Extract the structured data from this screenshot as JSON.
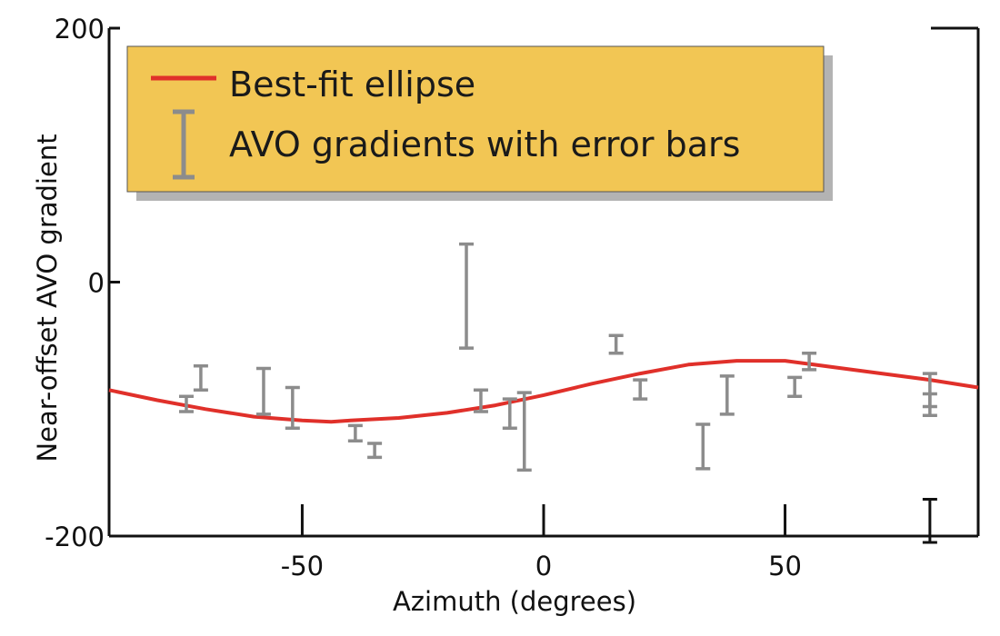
{
  "chart_data": {
    "type": "scatter",
    "xlabel": "Azimuth (degrees)",
    "ylabel": "Near-offset AVO gradient",
    "xlim": [
      -90,
      90
    ],
    "ylim": [
      -200,
      200
    ],
    "x_ticks": [
      -50,
      0,
      50
    ],
    "y_ticks": [
      200,
      0,
      -200
    ],
    "grid": false,
    "legend": {
      "placement": "top-left",
      "background_color": "#f2c654",
      "entries": [
        {
          "label": "Best-fit ellipse",
          "symbol": "line",
          "color": "#e0302a"
        },
        {
          "label": "AVO gradients with error bars",
          "symbol": "error-bar",
          "color": "#8c8c8c"
        }
      ]
    },
    "series": [
      {
        "name": "Best-fit ellipse",
        "kind": "line",
        "color": "#e0302a",
        "x": [
          -90,
          -80,
          -70,
          -60,
          -50,
          -44,
          -40,
          -30,
          -20,
          -10,
          0,
          10,
          20,
          30,
          40,
          46,
          50,
          60,
          70,
          80,
          90
        ],
        "y": [
          -85,
          -93,
          -100,
          -106,
          -109,
          -110,
          -109,
          -107,
          -103,
          -97,
          -89,
          -80,
          -72,
          -65,
          -62,
          -62,
          -62,
          -67,
          -72,
          -77,
          -83
        ]
      },
      {
        "name": "AVO gradients with error bars",
        "kind": "errorbar",
        "color": "#8c8c8c",
        "points": [
          {
            "x": -74,
            "low": -102,
            "high": -90
          },
          {
            "x": -71,
            "low": -85,
            "high": -66
          },
          {
            "x": -58,
            "low": -104,
            "high": -68
          },
          {
            "x": -52,
            "low": -115,
            "high": -83
          },
          {
            "x": -39,
            "low": -125,
            "high": -113
          },
          {
            "x": -35,
            "low": -138,
            "high": -127
          },
          {
            "x": -16,
            "low": -52,
            "high": 30
          },
          {
            "x": -13,
            "low": -102,
            "high": -85
          },
          {
            "x": -7,
            "low": -115,
            "high": -92
          },
          {
            "x": -4,
            "low": -148,
            "high": -87
          },
          {
            "x": 15,
            "low": -56,
            "high": -42
          },
          {
            "x": 20,
            "low": -92,
            "high": -77
          },
          {
            "x": 33,
            "low": -147,
            "high": -112
          },
          {
            "x": 38,
            "low": -104,
            "high": -74
          },
          {
            "x": 52,
            "low": -90,
            "high": -75
          },
          {
            "x": 55,
            "low": -69,
            "high": -56
          },
          {
            "x": 80,
            "low": -105,
            "high": -72
          },
          {
            "x": 80,
            "low": -98,
            "high": -88
          }
        ]
      },
      {
        "name": "",
        "kind": "errorbar",
        "color": "#111111",
        "points": [
          {
            "x": 80,
            "low": -205,
            "high": -171
          }
        ]
      }
    ]
  }
}
